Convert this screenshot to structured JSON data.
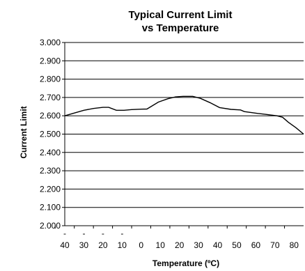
{
  "chart_data": {
    "type": "line",
    "title_lines": [
      "Typical Current Limit",
      "vs Temperature"
    ],
    "xlabel": "Temperature (ºC)",
    "ylabel": "Current Limit",
    "x_tick_labels": [
      {
        "value": -40,
        "minus": "-",
        "num": "40"
      },
      {
        "value": -30,
        "minus": "-",
        "num": "30"
      },
      {
        "value": -20,
        "minus": "-",
        "num": "20"
      },
      {
        "value": -10,
        "minus": "-",
        "num": "10"
      },
      {
        "value": 0,
        "minus": "",
        "num": "0"
      },
      {
        "value": 10,
        "minus": "",
        "num": "10"
      },
      {
        "value": 20,
        "minus": "",
        "num": "20"
      },
      {
        "value": 30,
        "minus": "",
        "num": "30"
      },
      {
        "value": 40,
        "minus": "",
        "num": "40"
      },
      {
        "value": 50,
        "minus": "",
        "num": "50"
      },
      {
        "value": 60,
        "minus": "",
        "num": "60"
      },
      {
        "value": 70,
        "minus": "",
        "num": "70"
      },
      {
        "value": 80,
        "minus": "",
        "num": "80"
      }
    ],
    "y_tick_labels": [
      "2.000",
      "2.100",
      "2.200",
      "2.300",
      "2.400",
      "2.500",
      "2.600",
      "2.700",
      "2.800",
      "2.900",
      "3.000"
    ],
    "xlim": [
      -40,
      85
    ],
    "ylim": [
      2.0,
      3.0
    ],
    "grid": "horizontal",
    "line_color": "#000000",
    "series": [
      {
        "x": [
          -40,
          -30,
          -25,
          -20,
          -17,
          -13,
          -9,
          -5,
          0,
          3,
          9,
          14,
          18,
          22,
          27,
          31,
          36,
          41,
          47,
          52,
          54,
          56,
          61,
          66,
          71,
          74,
          77,
          81,
          85
        ],
        "y": [
          2.6,
          2.63,
          2.64,
          2.646,
          2.646,
          2.63,
          2.63,
          2.634,
          2.636,
          2.637,
          2.675,
          2.693,
          2.703,
          2.706,
          2.706,
          2.695,
          2.672,
          2.645,
          2.635,
          2.632,
          2.623,
          2.62,
          2.613,
          2.607,
          2.6,
          2.592,
          2.565,
          2.535,
          2.5
        ]
      }
    ]
  }
}
